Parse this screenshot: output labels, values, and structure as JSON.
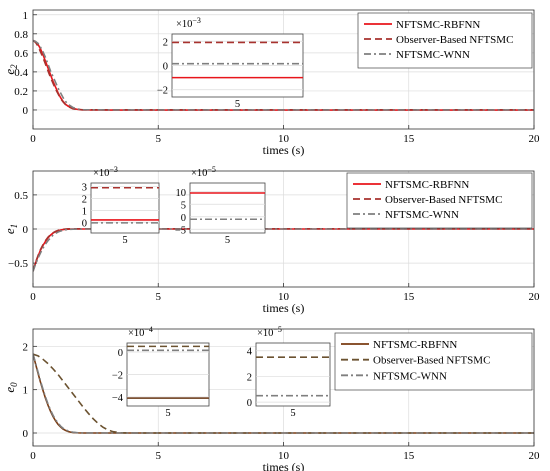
{
  "colors": {
    "rbfnn": "#e8151b",
    "observer": "#a8322e",
    "observer_dark": "#6b5230",
    "wnn": "#7f7f7f",
    "rbfnn_dark": "#7a3b12"
  },
  "chart_data": [
    {
      "type": "line",
      "ylabel_main": "e",
      "ylabel_sub": "2",
      "xlabel": "times (s)",
      "xlim": [
        0,
        20
      ],
      "ylim": [
        -0.2,
        1.05
      ],
      "xticks": [
        0,
        5,
        10,
        15,
        20
      ],
      "yticks": [
        0,
        0.2,
        0.4,
        0.6,
        0.8,
        1
      ],
      "xtick_labels": [
        "0",
        "5",
        "10",
        "15",
        "20"
      ],
      "ytick_labels": [
        "0",
        "0.2",
        "0.4",
        "0.6",
        "0.8",
        "1"
      ],
      "grid": true,
      "legend_position": "top-right",
      "series": [
        {
          "name": "NFTSMC-RBFNN",
          "style": "solid",
          "color_key": "rbfnn",
          "x": [
            0,
            0.1,
            0.2,
            0.3,
            0.4,
            0.5,
            0.6,
            0.7,
            0.8,
            0.9,
            1.0,
            1.1,
            1.2,
            1.3,
            1.4,
            1.6,
            1.8,
            2,
            3,
            5,
            10,
            15,
            20
          ],
          "values": [
            0.73,
            0.72,
            0.69,
            0.64,
            0.58,
            0.51,
            0.44,
            0.37,
            0.3,
            0.24,
            0.18,
            0.13,
            0.09,
            0.06,
            0.04,
            0.015,
            0.005,
            0.0,
            -0.001,
            -0.001,
            -0.001,
            -0.001,
            -0.001
          ]
        },
        {
          "name": "Observer-Based NFTSMC",
          "style": "dashed",
          "color_key": "observer",
          "x": [
            0,
            0.1,
            0.2,
            0.3,
            0.4,
            0.5,
            0.6,
            0.7,
            0.8,
            0.9,
            1.0,
            1.1,
            1.2,
            1.3,
            1.4,
            1.6,
            1.8,
            2,
            3,
            5,
            10,
            15,
            20
          ],
          "values": [
            0.73,
            0.71,
            0.67,
            0.61,
            0.55,
            0.48,
            0.41,
            0.34,
            0.28,
            0.22,
            0.17,
            0.12,
            0.085,
            0.055,
            0.035,
            0.012,
            0.004,
            0.002,
            0.002,
            0.002,
            0.002,
            0.002,
            0.002
          ]
        },
        {
          "name": "NFTSMC-WNN",
          "style": "dashdot",
          "color_key": "wnn",
          "x": [
            0,
            0.1,
            0.2,
            0.3,
            0.4,
            0.5,
            0.6,
            0.7,
            0.8,
            0.9,
            1.0,
            1.1,
            1.2,
            1.3,
            1.4,
            1.6,
            1.8,
            2,
            3,
            5,
            10,
            15,
            20
          ],
          "values": [
            0.73,
            0.72,
            0.7,
            0.66,
            0.61,
            0.55,
            0.48,
            0.41,
            0.35,
            0.29,
            0.23,
            0.18,
            0.13,
            0.09,
            0.06,
            0.025,
            0.01,
            0.003,
            0.0002,
            0.0002,
            0.0002,
            0.0002,
            0.0002
          ]
        }
      ],
      "insets": [
        {
          "exponent_base": "×10",
          "exponent_power": "−3",
          "xtick_label": "5",
          "ylim": [
            -2.6,
            2.6
          ],
          "yticks": [
            -2,
            0,
            2
          ],
          "ytick_labels": [
            "−2",
            "0",
            "2"
          ],
          "values": [
            {
              "color_key": "rbfnn",
              "style": "solid",
              "y": -1.0
            },
            {
              "color_key": "observer",
              "style": "dashed",
              "y": 1.9
            },
            {
              "color_key": "wnn",
              "style": "dashdot",
              "y": 0.15
            }
          ]
        }
      ]
    },
    {
      "type": "line",
      "ylabel_main": "e",
      "ylabel_sub": "1",
      "xlabel": "times (s)",
      "xlim": [
        0,
        20
      ],
      "ylim": [
        -0.85,
        0.85
      ],
      "xticks": [
        0,
        5,
        10,
        15,
        20
      ],
      "yticks": [
        -0.5,
        0,
        0.5
      ],
      "xtick_labels": [
        "0",
        "5",
        "10",
        "15",
        "20"
      ],
      "ytick_labels": [
        "−0.5",
        "0",
        "0.5"
      ],
      "grid": true,
      "legend_position": "top-right",
      "series": [
        {
          "name": "NFTSMC-RBFNN",
          "style": "solid",
          "color_key": "rbfnn",
          "x": [
            0,
            0.1,
            0.2,
            0.3,
            0.4,
            0.5,
            0.6,
            0.7,
            0.8,
            0.9,
            1.0,
            1.1,
            1.2,
            1.3,
            1.4,
            1.5,
            1.6,
            1.8,
            2,
            3,
            5,
            10,
            15,
            20
          ],
          "values": [
            -0.62,
            -0.5,
            -0.4,
            -0.31,
            -0.24,
            -0.18,
            -0.13,
            -0.09,
            -0.06,
            -0.04,
            -0.025,
            -0.015,
            -0.008,
            -0.004,
            -0.002,
            -0.001,
            0.0,
            0.0,
            0.0,
            0.0,
            0.0,
            0.0,
            0.0,
            0.0
          ]
        },
        {
          "name": "Observer-Based NFTSMC",
          "style": "dashed",
          "color_key": "observer",
          "x": [
            0,
            0.1,
            0.2,
            0.3,
            0.4,
            0.5,
            0.6,
            0.7,
            0.8,
            0.9,
            1.0,
            1.1,
            1.2,
            1.3,
            1.4,
            1.5,
            1.6,
            1.8,
            2,
            3,
            5,
            10,
            15,
            20
          ],
          "values": [
            -0.62,
            -0.49,
            -0.39,
            -0.3,
            -0.23,
            -0.17,
            -0.12,
            -0.085,
            -0.055,
            -0.035,
            -0.02,
            -0.01,
            -0.004,
            0.0,
            0.002,
            0.003,
            0.003,
            0.003,
            0.003,
            0.003,
            0.003,
            0.003,
            0.003,
            0.003
          ]
        },
        {
          "name": "NFTSMC-WNN",
          "style": "dashdot",
          "color_key": "wnn",
          "x": [
            0,
            0.1,
            0.2,
            0.3,
            0.4,
            0.5,
            0.6,
            0.7,
            0.8,
            0.9,
            1.0,
            1.1,
            1.2,
            1.3,
            1.4,
            1.5,
            1.6,
            1.8,
            2,
            3,
            5,
            10,
            15,
            20
          ],
          "values": [
            -0.62,
            -0.52,
            -0.43,
            -0.35,
            -0.28,
            -0.22,
            -0.17,
            -0.13,
            -0.09,
            -0.065,
            -0.045,
            -0.03,
            -0.02,
            -0.012,
            -0.007,
            -0.004,
            -0.002,
            -0.001,
            0.0,
            0.0,
            0.0,
            0.0,
            0.0,
            0.0
          ]
        }
      ],
      "insets": [
        {
          "exponent_base": "×10",
          "exponent_power": "−3",
          "xtick_label": "5",
          "ylim": [
            -0.9,
            3.3
          ],
          "yticks": [
            0,
            1,
            2,
            3
          ],
          "ytick_labels": [
            "0",
            "1",
            "2",
            "3"
          ],
          "values": [
            {
              "color_key": "rbfnn",
              "style": "solid",
              "y": 0.2
            },
            {
              "color_key": "observer",
              "style": "dashed",
              "y": 2.9
            },
            {
              "color_key": "wnn",
              "style": "dashdot",
              "y": -0.05
            }
          ]
        },
        {
          "exponent_base": "×10",
          "exponent_power": "−5",
          "xtick_label": "5",
          "ylim": [
            -6.5,
            13.5
          ],
          "yticks": [
            -5,
            0,
            5,
            10
          ],
          "ytick_labels": [
            "−5",
            "0",
            "5",
            "10"
          ],
          "values": [
            {
              "color_key": "rbfnn",
              "style": "solid",
              "y": 9.5
            },
            {
              "color_key": "wnn",
              "style": "dashdot",
              "y": -1.0
            }
          ]
        }
      ]
    },
    {
      "type": "line",
      "ylabel_main": "e",
      "ylabel_sub": "0",
      "xlabel": "times (s)",
      "xlim": [
        0,
        20
      ],
      "ylim": [
        -0.3,
        2.4
      ],
      "xticks": [
        0,
        5,
        10,
        15,
        20
      ],
      "yticks": [
        0,
        1,
        2
      ],
      "xtick_labels": [
        "0",
        "5",
        "10",
        "15",
        "20"
      ],
      "ytick_labels": [
        "0",
        "1",
        "2"
      ],
      "grid": true,
      "legend_position": "top-right",
      "series": [
        {
          "name": "NFTSMC-RBFNN",
          "style": "solid",
          "color_key": "rbfnn_dark",
          "x": [
            0,
            0.1,
            0.2,
            0.3,
            0.4,
            0.5,
            0.6,
            0.7,
            0.8,
            0.9,
            1.0,
            1.1,
            1.2,
            1.3,
            1.4,
            1.5,
            1.6,
            1.8,
            2,
            3,
            5,
            10,
            15,
            20
          ],
          "values": [
            1.82,
            1.6,
            1.38,
            1.17,
            0.98,
            0.8,
            0.64,
            0.5,
            0.38,
            0.28,
            0.2,
            0.14,
            0.09,
            0.06,
            0.035,
            0.02,
            0.01,
            0.003,
            0.0,
            0.0,
            0.0,
            0.0,
            0.0,
            0.0
          ]
        },
        {
          "name": "Observer-Based NFTSMC",
          "style": "dashed",
          "color_key": "observer_dark",
          "x": [
            0,
            0.2,
            0.4,
            0.6,
            0.8,
            1.0,
            1.2,
            1.4,
            1.6,
            1.8,
            2.0,
            2.2,
            2.4,
            2.6,
            2.8,
            3.0,
            3.2,
            3.5,
            4,
            5,
            10,
            15,
            20
          ],
          "values": [
            1.82,
            1.78,
            1.7,
            1.6,
            1.48,
            1.35,
            1.2,
            1.05,
            0.9,
            0.75,
            0.6,
            0.46,
            0.33,
            0.22,
            0.13,
            0.07,
            0.03,
            0.005,
            0.0,
            0.0,
            0.0,
            0.0,
            0.0
          ]
        },
        {
          "name": "NFTSMC-WNN",
          "style": "dashdot",
          "color_key": "wnn",
          "x": [
            0,
            0.1,
            0.2,
            0.3,
            0.4,
            0.5,
            0.6,
            0.7,
            0.8,
            0.9,
            1.0,
            1.1,
            1.2,
            1.3,
            1.4,
            1.5,
            1.6,
            1.8,
            2,
            3,
            5,
            10,
            15,
            20
          ],
          "values": [
            1.82,
            1.62,
            1.41,
            1.2,
            1.01,
            0.83,
            0.67,
            0.53,
            0.41,
            0.31,
            0.23,
            0.16,
            0.11,
            0.075,
            0.05,
            0.03,
            0.018,
            0.006,
            0.002,
            0.0,
            0.0,
            0.0,
            0.0,
            0.0
          ]
        }
      ],
      "insets": [
        {
          "exponent_base": "×10",
          "exponent_power": "−4",
          "xtick_label": "5",
          "ylim": [
            -4.8,
            0.8
          ],
          "yticks": [
            -4,
            -2,
            0
          ],
          "ytick_labels": [
            "−4",
            "−2",
            "0"
          ],
          "values": [
            {
              "color_key": "rbfnn",
              "style": "solid",
              "y": -4.1
            },
            {
              "color_key": "observer_dark",
              "style": "solid",
              "y": -4.1
            },
            {
              "color_key": "observer_dark",
              "style": "dashed",
              "y": 0.5
            },
            {
              "color_key": "wnn",
              "style": "dashdot",
              "y": 0.15
            }
          ]
        },
        {
          "exponent_base": "×10",
          "exponent_power": "−5",
          "xtick_label": "5",
          "ylim": [
            -0.3,
            4.6
          ],
          "yticks": [
            0,
            2,
            4
          ],
          "ytick_labels": [
            "0",
            "2",
            "4"
          ],
          "values": [
            {
              "color_key": "observer_dark",
              "style": "dashed",
              "y": 3.5
            },
            {
              "color_key": "wnn",
              "style": "dashdot",
              "y": 0.5
            }
          ]
        }
      ]
    }
  ]
}
